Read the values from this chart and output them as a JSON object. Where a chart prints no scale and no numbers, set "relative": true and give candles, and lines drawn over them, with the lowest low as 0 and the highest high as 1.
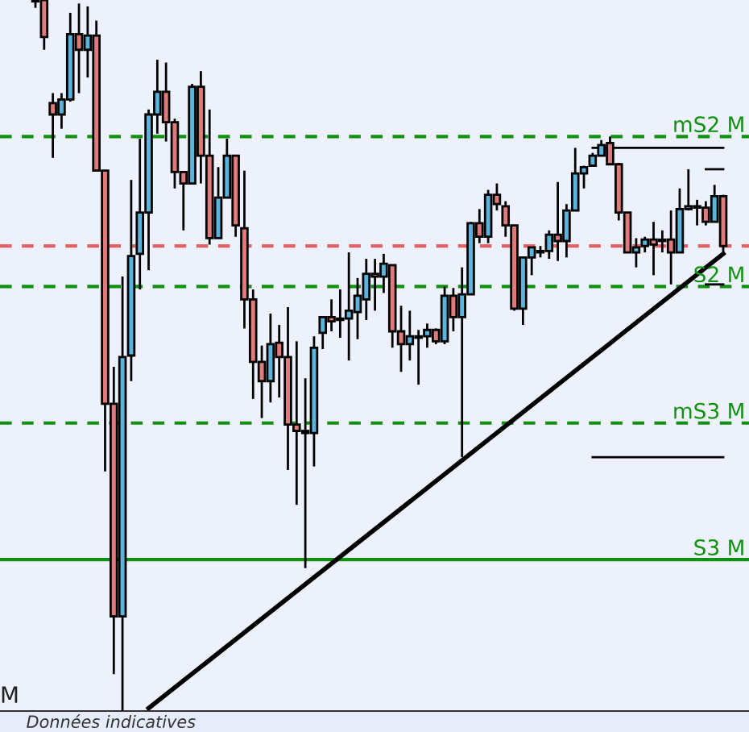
{
  "chart_data": {
    "type": "candlestick",
    "relative": true,
    "categories": [
      null,
      null,
      null,
      null,
      null,
      null,
      null,
      null,
      null,
      null,
      null,
      null,
      null,
      null,
      null,
      null,
      null,
      null,
      null,
      null,
      null,
      null,
      null,
      null,
      null,
      null,
      null,
      null,
      null,
      null,
      null,
      null,
      null,
      null,
      null,
      null,
      null,
      null,
      null,
      null,
      null,
      null,
      null,
      null,
      null,
      null,
      null,
      null,
      null,
      null,
      null,
      null,
      null,
      null,
      null,
      null,
      null,
      null,
      null,
      null,
      null,
      null,
      null,
      null,
      null,
      null,
      null,
      null,
      null,
      null,
      null,
      null,
      null,
      null,
      null,
      null,
      null,
      null,
      null,
      null
    ],
    "ohlc": [
      [
        1,
        1,
        0.989,
        0.998
      ],
      [
        1,
        1,
        0.93,
        0.948
      ],
      [
        0.855,
        0.869,
        0.778,
        0.839
      ],
      [
        0.839,
        0.869,
        0.819,
        0.86
      ],
      [
        0.86,
        0.982,
        0.857,
        0.952
      ],
      [
        0.952,
        0.995,
        0.869,
        0.93
      ],
      [
        0.93,
        0.991,
        0.891,
        0.95
      ],
      [
        0.95,
        0.971,
        0.76,
        0.76
      ],
      [
        0.76,
        0.76,
        0.337,
        0.432
      ],
      [
        0.432,
        0.484,
        0.052,
        0.133
      ],
      [
        0.133,
        0.611,
        0,
        0.498
      ],
      [
        0.5,
        0.747,
        0.464,
        0.64
      ],
      [
        0.643,
        0.805,
        0.593,
        0.701
      ],
      [
        0.701,
        0.846,
        0.62,
        0.839
      ],
      [
        0.839,
        0.916,
        0.812,
        0.871
      ],
      [
        0.871,
        0.912,
        0.801,
        0.828
      ],
      [
        0.828,
        0.833,
        0.735,
        0.758
      ],
      [
        0.758,
        0.758,
        0.676,
        0.742
      ],
      [
        0.742,
        0.882,
        0.742,
        0.878
      ],
      [
        0.878,
        0.9,
        0.742,
        0.781
      ],
      [
        0.781,
        0.846,
        0.656,
        0.665
      ],
      [
        0.665,
        0.765,
        0.665,
        0.722
      ],
      [
        0.722,
        0.805,
        0.722,
        0.781
      ],
      [
        0.781,
        0.781,
        0.667,
        0.683
      ],
      [
        0.679,
        0.76,
        0.538,
        0.579
      ],
      [
        0.579,
        0.593,
        0.439,
        0.491
      ],
      [
        0.491,
        0.514,
        0.412,
        0.464
      ],
      [
        0.464,
        0.559,
        0.434,
        0.516
      ],
      [
        0.518,
        0.543,
        0.441,
        0.498
      ],
      [
        0.498,
        0.568,
        0.339,
        0.403
      ],
      [
        0.403,
        0.52,
        0.29,
        0.394
      ],
      [
        0.391,
        0.468,
        0.201,
        0.394
      ],
      [
        0.391,
        0.527,
        0.344,
        0.511
      ],
      [
        0.532,
        0.554,
        0.509,
        0.554
      ],
      [
        0.554,
        0.579,
        0.534,
        0.548
      ],
      [
        0.552,
        0.593,
        0.525,
        0.55
      ],
      [
        0.552,
        0.645,
        0.493,
        0.563
      ],
      [
        0.561,
        0.609,
        0.523,
        0.584
      ],
      [
        0.579,
        0.636,
        0.55,
        0.615
      ],
      [
        0.615,
        0.636,
        0.563,
        0.611
      ],
      [
        0.611,
        0.643,
        0.588,
        0.629
      ],
      [
        0.627,
        0.627,
        0.511,
        0.534
      ],
      [
        0.534,
        0.57,
        0.477,
        0.516
      ],
      [
        0.516,
        0.563,
        0.493,
        0.527
      ],
      [
        0.525,
        0.536,
        0.459,
        0.527
      ],
      [
        0.527,
        0.545,
        0.511,
        0.536
      ],
      [
        0.536,
        0.538,
        0.516,
        0.52
      ],
      [
        0.52,
        0.597,
        0.516,
        0.584
      ],
      [
        0.584,
        0.595,
        0.534,
        0.554
      ],
      [
        0.554,
        0.624,
        0.357,
        0.586
      ],
      [
        0.586,
        0.688,
        0.586,
        0.686
      ],
      [
        0.686,
        0.706,
        0.658,
        0.667
      ],
      [
        0.667,
        0.733,
        0.658,
        0.726
      ],
      [
        0.726,
        0.742,
        0.704,
        0.713
      ],
      [
        0.71,
        0.717,
        0.667,
        0.683
      ],
      [
        0.683,
        0.683,
        0.563,
        0.566
      ],
      [
        0.566,
        0.638,
        0.543,
        0.638
      ],
      [
        0.638,
        0.652,
        0.613,
        0.652
      ],
      [
        0.645,
        0.654,
        0.638,
        0.647
      ],
      [
        0.647,
        0.676,
        0.636,
        0.67
      ],
      [
        0.67,
        0.744,
        0.633,
        0.661
      ],
      [
        0.661,
        0.713,
        0.638,
        0.704
      ],
      [
        0.704,
        0.792,
        0.704,
        0.756
      ],
      [
        0.756,
        0.767,
        0.735,
        0.765
      ],
      [
        0.767,
        0.785,
        0.767,
        0.781
      ],
      [
        0.781,
        0.803,
        0.781,
        0.796
      ],
      [
        0.799,
        0.808,
        0.769,
        0.769
      ],
      [
        0.769,
        0.771,
        0.69,
        0.701
      ],
      [
        0.701,
        0.701,
        0.645,
        0.645
      ],
      [
        0.645,
        0.665,
        0.624,
        0.652
      ],
      [
        0.654,
        0.667,
        0.645,
        0.663
      ],
      [
        0.663,
        0.688,
        0.613,
        0.656
      ],
      [
        0.661,
        0.676,
        0.645,
        0.663
      ],
      [
        0.663,
        0.704,
        0.6,
        0.645
      ],
      [
        0.645,
        0.735,
        0.645,
        0.706
      ],
      [
        0.706,
        0.762,
        0.704,
        0.71
      ],
      [
        0.708,
        0.719,
        0.683,
        0.71
      ],
      [
        0.708,
        0.717,
        0.683,
        0.688
      ],
      [
        0.688,
        0.74,
        0.688,
        0.724
      ],
      [
        0.724,
        0.726,
        0.643,
        0.654
      ]
    ],
    "colors": [
      "#e07b7b",
      "#e07b7b",
      "#e07b7b",
      "#5ab4dc",
      "#5ab4dc",
      "#e07b7b",
      "#5ab4dc",
      "#e07b7b",
      "#e07b7b",
      "#e07b7b",
      "#5ab4dc",
      "#5ab4dc",
      "#5ab4dc",
      "#5ab4dc",
      "#5ab4dc",
      "#e07b7b",
      "#e07b7b",
      "#e07b7b",
      "#5ab4dc",
      "#e07b7b",
      "#e07b7b",
      "#5ab4dc",
      "#5ab4dc",
      "#e07b7b",
      "#e07b7b",
      "#e07b7b",
      "#e07b7b",
      "#5ab4dc",
      "#e07b7b",
      "#e07b7b",
      "#e07b7b",
      "#5ab4dc",
      "#5ab4dc",
      "#5ab4dc",
      "#e07b7b",
      "#e07b7b",
      "#5ab4dc",
      "#5ab4dc",
      "#5ab4dc",
      "#e07b7b",
      "#5ab4dc",
      "#e07b7b",
      "#e07b7b",
      "#5ab4dc",
      "#5ab4dc",
      "#5ab4dc",
      "#e07b7b",
      "#5ab4dc",
      "#e07b7b",
      "#5ab4dc",
      "#5ab4dc",
      "#e07b7b",
      "#5ab4dc",
      "#e07b7b",
      "#e07b7b",
      "#e07b7b",
      "#5ab4dc",
      "#5ab4dc",
      "#5ab4dc",
      "#5ab4dc",
      "#e07b7b",
      "#5ab4dc",
      "#5ab4dc",
      "#5ab4dc",
      "#5ab4dc",
      "#5ab4dc",
      "#e07b7b",
      "#e07b7b",
      "#e07b7b",
      "#5ab4dc",
      "#5ab4dc",
      "#e07b7b",
      "#5ab4dc",
      "#e07b7b",
      "#5ab4dc",
      "#5ab4dc",
      "#5ab4dc",
      "#e07b7b",
      "#5ab4dc",
      "#e07b7b"
    ],
    "series": [
      {
        "type": "line",
        "color": "#000000",
        "values": [
          null,
          null,
          null,
          null,
          null,
          null,
          null,
          null,
          null,
          null,
          null,
          null,
          null,
          0.004,
          null,
          null,
          null,
          null,
          null,
          null,
          null,
          null,
          null,
          null,
          null,
          null,
          null,
          null,
          null,
          null,
          null,
          null,
          null,
          null,
          null,
          null,
          null,
          null,
          null,
          null,
          null,
          null,
          null,
          null,
          null,
          null,
          null,
          null,
          null,
          null,
          null,
          null,
          null,
          null,
          null,
          null,
          null,
          null,
          null,
          null,
          null,
          null,
          null,
          null,
          null,
          null,
          null,
          null,
          null,
          null,
          null,
          null,
          null,
          null,
          null,
          null,
          null,
          null,
          null,
          0.643
        ]
      },
      {
        "type": "line",
        "color": "#000000",
        "values": [
          null,
          null,
          null,
          null,
          null,
          null,
          null,
          null,
          null,
          null,
          null,
          null,
          null,
          null,
          null,
          null,
          null,
          null,
          null,
          null,
          null,
          null,
          null,
          null,
          null,
          null,
          null,
          null,
          null,
          null,
          null,
          null,
          null,
          null,
          null,
          null,
          null,
          null,
          null,
          null,
          null,
          null,
          null,
          null,
          null,
          null,
          null,
          null,
          null,
          null,
          null,
          null,
          null,
          null,
          null,
          null,
          null,
          null,
          null,
          null,
          null,
          null,
          null,
          null,
          0.792,
          null,
          null,
          null,
          null,
          null,
          null,
          null,
          null,
          null,
          null,
          null,
          null,
          null,
          null,
          0.792
        ]
      },
      {
        "type": "line",
        "color": "#000000",
        "values": [
          null,
          null,
          null,
          null,
          null,
          null,
          null,
          null,
          null,
          null,
          null,
          null,
          null,
          null,
          null,
          null,
          null,
          null,
          null,
          null,
          null,
          null,
          null,
          null,
          null,
          null,
          null,
          null,
          null,
          null,
          null,
          null,
          null,
          null,
          null,
          null,
          null,
          null,
          null,
          null,
          null,
          null,
          null,
          null,
          null,
          null,
          null,
          null,
          null,
          null,
          null,
          null,
          null,
          null,
          null,
          null,
          null,
          null,
          null,
          null,
          null,
          null,
          null,
          null,
          null,
          null,
          null,
          null,
          null,
          null,
          null,
          null,
          null,
          null,
          null,
          null,
          null,
          0.762,
          null,
          0.762
        ]
      },
      {
        "type": "line",
        "color": "#000000",
        "values": [
          null,
          null,
          null,
          null,
          null,
          null,
          null,
          null,
          null,
          null,
          null,
          null,
          null,
          null,
          null,
          null,
          null,
          null,
          null,
          null,
          null,
          null,
          null,
          null,
          null,
          null,
          null,
          null,
          null,
          null,
          null,
          null,
          null,
          null,
          null,
          null,
          null,
          null,
          null,
          null,
          null,
          null,
          null,
          null,
          null,
          null,
          null,
          null,
          null,
          null,
          null,
          null,
          null,
          null,
          null,
          null,
          null,
          null,
          null,
          null,
          null,
          null,
          null,
          null,
          null,
          null,
          null,
          null,
          null,
          null,
          null,
          null,
          null,
          null,
          null,
          null,
          null,
          0.6,
          null,
          0.6
        ]
      },
      {
        "type": "line",
        "color": "#000000",
        "values": [
          null,
          null,
          null,
          null,
          null,
          null,
          null,
          null,
          null,
          null,
          null,
          null,
          null,
          null,
          null,
          null,
          null,
          null,
          null,
          null,
          null,
          null,
          null,
          null,
          null,
          null,
          null,
          null,
          null,
          null,
          null,
          null,
          null,
          null,
          null,
          null,
          null,
          null,
          null,
          null,
          null,
          null,
          null,
          null,
          null,
          null,
          null,
          null,
          null,
          null,
          null,
          null,
          null,
          null,
          null,
          null,
          null,
          null,
          null,
          null,
          null,
          null,
          null,
          null,
          0.357,
          null,
          null,
          null,
          null,
          null,
          null,
          null,
          null,
          null,
          null,
          null,
          null,
          null,
          null,
          0.357
        ]
      }
    ],
    "ref_lines": [
      {
        "axis": "y",
        "value": 0.808,
        "label": "mS2 M",
        "color": "#119111",
        "line_style": "dashed"
      },
      {
        "axis": "y",
        "value": 0.654,
        "color": "#e06262",
        "line_style": "dashed"
      },
      {
        "axis": "y",
        "value": 0.597,
        "label": "S2 M",
        "color": "#119111",
        "line_style": "dashed"
      },
      {
        "axis": "y",
        "value": 0.405,
        "label": "mS3 M",
        "color": "#119111",
        "line_style": "dashed"
      },
      {
        "axis": "y",
        "value": 0.213,
        "label": "S3 M",
        "color": "#119111",
        "line_style": "solid"
      }
    ],
    "annotations": [
      "M",
      "Données indicatives"
    ]
  }
}
